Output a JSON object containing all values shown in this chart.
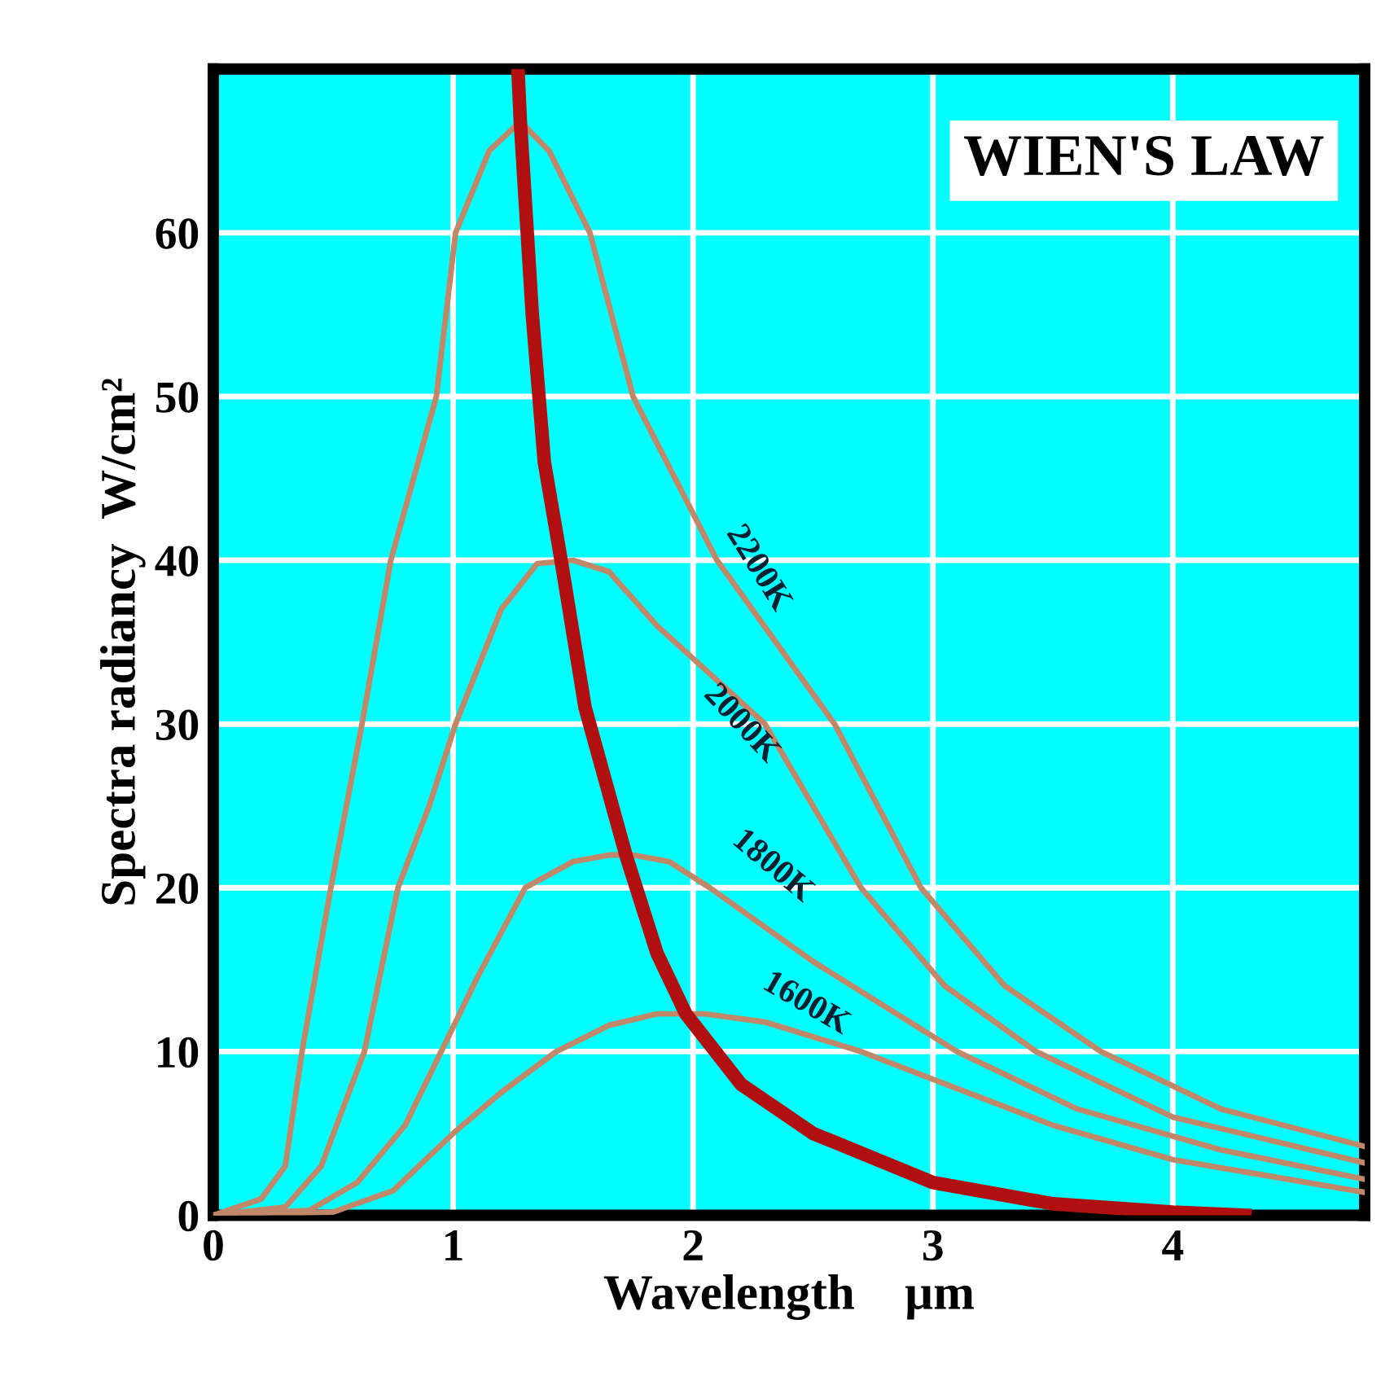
{
  "chart_data": {
    "type": "line",
    "title": "WIEN'S LAW",
    "xlabel": "Wavelength    µm",
    "ylabel": "Spectra radiancy  W/cm²",
    "xlim": [
      0,
      4.8
    ],
    "ylim": [
      0,
      70
    ],
    "xticks": [
      0,
      1,
      2,
      3,
      4
    ],
    "yticks": [
      0,
      10,
      20,
      30,
      40,
      50,
      60
    ],
    "grid": true,
    "legend": false,
    "marker": "none",
    "line_style": "solid",
    "series": [
      {
        "name": "2200K",
        "color": "#c08868",
        "x": [
          0,
          0.2,
          0.3,
          0.37,
          0.49,
          0.62,
          0.74,
          0.93,
          1.01,
          1.15,
          1.28,
          1.4,
          1.57,
          1.75,
          2.1,
          2.59,
          2.95,
          3.3,
          3.7,
          4.2,
          4.8
        ],
        "values": [
          0,
          1,
          3,
          10,
          20,
          30,
          40,
          50,
          60,
          65,
          66.8,
          65,
          60,
          50,
          40,
          30,
          20,
          14,
          10,
          6.5,
          4.2
        ]
      },
      {
        "name": "2000K",
        "color": "#c08868",
        "x": [
          0,
          0.3,
          0.45,
          0.63,
          0.77,
          0.9,
          1.01,
          1.2,
          1.35,
          1.5,
          1.65,
          1.85,
          2.3,
          2.7,
          3.05,
          3.43,
          4.0,
          4.8
        ],
        "values": [
          0,
          0.5,
          3,
          10,
          20,
          25,
          30,
          37,
          39.8,
          40,
          39.3,
          36,
          30,
          20,
          14,
          10,
          6,
          3.2
        ]
      },
      {
        "name": "1800K",
        "color": "#c08868",
        "x": [
          0,
          0.4,
          0.6,
          0.8,
          0.95,
          1.1,
          1.3,
          1.5,
          1.65,
          1.75,
          1.9,
          2.07,
          2.5,
          3.1,
          3.6,
          4.2,
          4.8
        ],
        "values": [
          0,
          0.3,
          2,
          5.5,
          10,
          14.5,
          20,
          21.6,
          22,
          22,
          21.6,
          20,
          15.5,
          10,
          6.5,
          4,
          2.2
        ]
      },
      {
        "name": "1600K",
        "color": "#c08868",
        "x": [
          0,
          0.5,
          0.75,
          1.0,
          1.2,
          1.43,
          1.65,
          1.85,
          2.05,
          2.3,
          2.7,
          3.0,
          3.5,
          4.0,
          4.8
        ],
        "values": [
          0,
          0.2,
          1.5,
          5,
          7.5,
          10,
          11.6,
          12.3,
          12.3,
          11.8,
          10,
          8.3,
          5.5,
          3.4,
          1.4
        ]
      },
      {
        "color": "#b01010",
        "x": [
          1.27,
          1.28,
          1.33,
          1.38,
          1.45,
          1.55,
          1.72,
          1.85,
          1.97,
          2.2,
          2.5,
          3.0,
          3.5,
          4.0,
          4.3
        ],
        "values": [
          70,
          66.8,
          55,
          46,
          40,
          31,
          22,
          16,
          12.3,
          8,
          5,
          2,
          0.7,
          0.2,
          0
        ]
      }
    ]
  }
}
